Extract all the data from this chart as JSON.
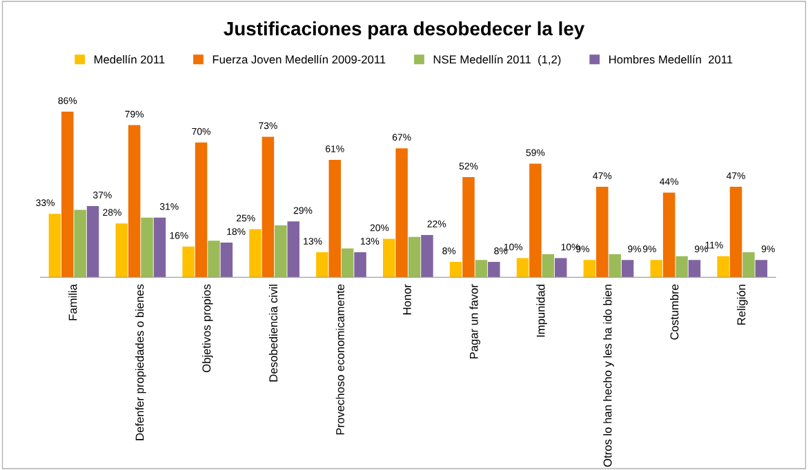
{
  "chart_data": {
    "type": "bar",
    "title": "Justificaciones para desobedecer la ley",
    "categories": [
      "Familia",
      "Defenfer propiedades o bienes",
      "Objetivos propios",
      "Desobediencia civil",
      "Provechoso economicamente",
      "Honor",
      "Pagar un favor",
      "Impunidad",
      "Otros lo han hecho y les ha ido bien",
      "Costumbre",
      "Religión"
    ],
    "series": [
      {
        "name": "Medellín 2011",
        "color": "#ffc000",
        "values": [
          33,
          28,
          16,
          25,
          13,
          20,
          8,
          10,
          9,
          9,
          11
        ],
        "value_labels": [
          "33%",
          "28%",
          "16%",
          "25%",
          "13%",
          "20%",
          "8%",
          "10%",
          "9%",
          "9%",
          "11%"
        ]
      },
      {
        "name": "Fuerza Joven Medellín 2009-2011",
        "color": "#f07000",
        "values": [
          86,
          79,
          70,
          73,
          61,
          67,
          52,
          59,
          47,
          44,
          47
        ],
        "value_labels": [
          "86%",
          "79%",
          "70%",
          "73%",
          "61%",
          "67%",
          "52%",
          "59%",
          "47%",
          "44%",
          "47%"
        ]
      },
      {
        "name": "NSE Medellín 2011  (1,2)",
        "color": "#9bbb59",
        "values": [
          35,
          31,
          19,
          27,
          15,
          21,
          9,
          12,
          12,
          11,
          13
        ],
        "value_labels": [
          null,
          null,
          null,
          null,
          null,
          null,
          null,
          null,
          null,
          null,
          null
        ]
      },
      {
        "name": "Hombres Medellín  2011",
        "color": "#8064a2",
        "values": [
          37,
          31,
          18,
          29,
          13,
          22,
          8,
          10,
          9,
          9,
          9
        ],
        "value_labels": [
          "37%",
          "31%",
          "18%",
          "29%",
          "13%",
          "22%",
          "8%",
          "10%",
          "9%",
          "9%",
          "9%"
        ]
      }
    ],
    "tick_labels": "x",
    "grid": false,
    "legend": "top"
  }
}
